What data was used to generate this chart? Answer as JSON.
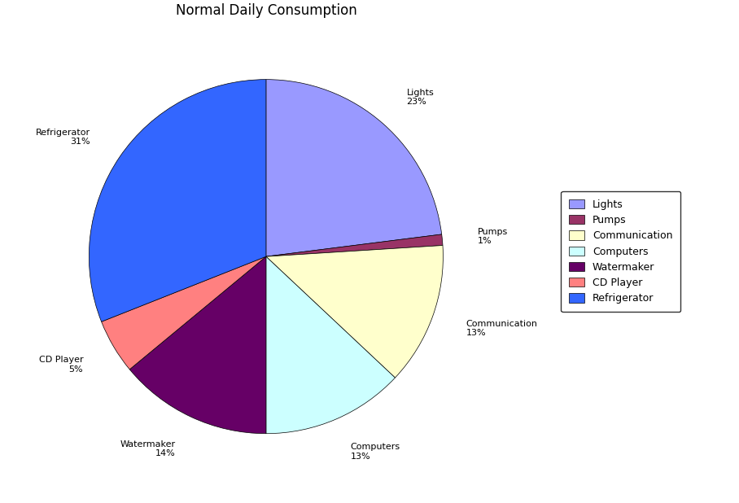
{
  "title": "Normal Daily Consumption",
  "categories": [
    "Lights",
    "Pumps",
    "Communication",
    "Computers",
    "Watermaker",
    "CD Player",
    "Refrigerator"
  ],
  "percentages": [
    23,
    1,
    13,
    13,
    14,
    5,
    31
  ],
  "colors": [
    "#9999FF",
    "#993366",
    "#FFFFCC",
    "#CCFFFF",
    "#660066",
    "#FF8080",
    "#3366FF"
  ],
  "startangle": 90,
  "background_color": "#FFFFFF",
  "title_fontsize": 12,
  "label_fontsize": 8,
  "legend_fontsize": 9
}
